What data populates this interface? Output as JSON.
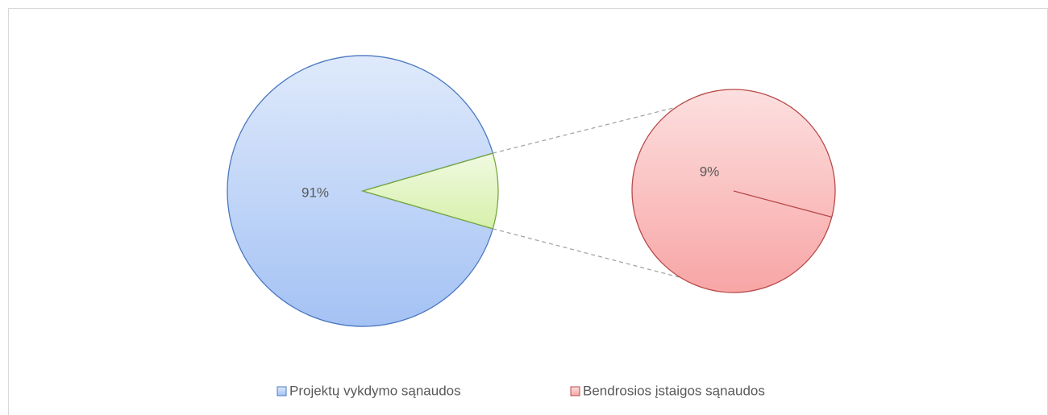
{
  "chart_data": {
    "type": "pie",
    "categories": [
      "Projektų vykdymo sąnaudos",
      "Bendrosios įstaigos sąnaudos"
    ],
    "values": [
      91,
      9
    ],
    "value_labels": [
      "91%",
      "9%"
    ],
    "colors": [
      "#a4c2f4",
      "#f8a5a5"
    ],
    "edge_colors": [
      "#4a78c0",
      "#b84a4a"
    ],
    "split_color": "#d6f0aa",
    "split_edge_color": "#77a83a",
    "legend": "bottom"
  }
}
